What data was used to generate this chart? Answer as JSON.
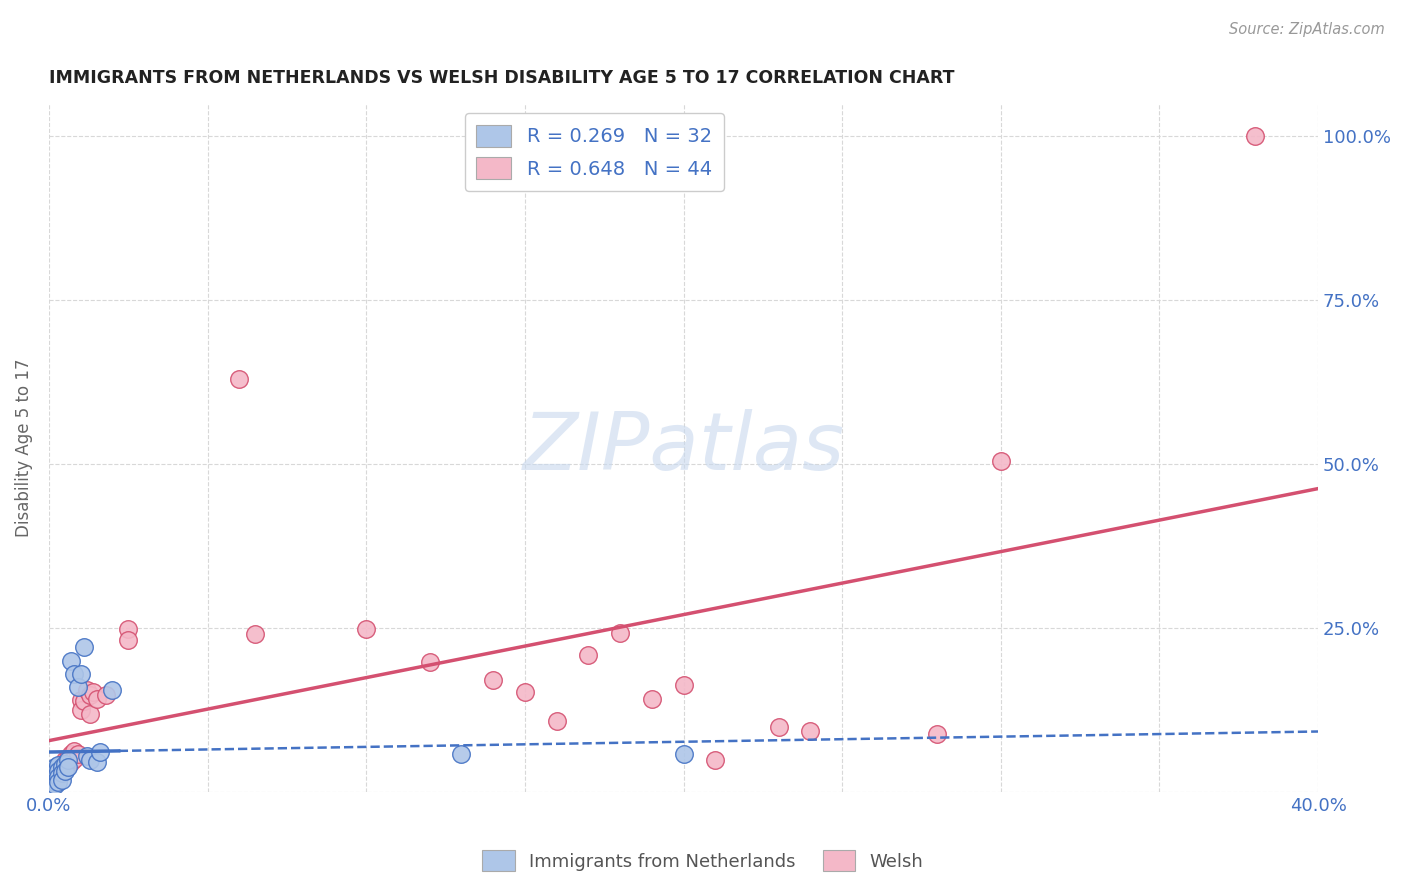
{
  "title": "IMMIGRANTS FROM NETHERLANDS VS WELSH DISABILITY AGE 5 TO 17 CORRELATION CHART",
  "source": "Source: ZipAtlas.com",
  "ylabel": "Disability Age 5 to 17",
  "xlim": [
    0.0,
    0.4
  ],
  "ylim": [
    0.0,
    1.05
  ],
  "xtick_positions": [
    0.0,
    0.05,
    0.1,
    0.15,
    0.2,
    0.25,
    0.3,
    0.35,
    0.4
  ],
  "xticklabels": [
    "0.0%",
    "",
    "",
    "",
    "",
    "",
    "",
    "",
    "40.0%"
  ],
  "ytick_positions": [
    0.0,
    0.25,
    0.5,
    0.75,
    1.0
  ],
  "yticklabels_right": [
    "",
    "25.0%",
    "50.0%",
    "75.0%",
    "100.0%"
  ],
  "netherlands_color": "#aec6e8",
  "netherlands_line_color": "#4472c4",
  "welsh_color": "#f4b8c8",
  "welsh_line_color": "#d45070",
  "netherlands_R": 0.269,
  "netherlands_N": 32,
  "welsh_R": 0.648,
  "welsh_N": 44,
  "legend_label_netherlands": "Immigrants from Netherlands",
  "legend_label_welsh": "Welsh",
  "watermark": "ZIPatlas",
  "netherlands_points": [
    [
      0.001,
      0.03
    ],
    [
      0.001,
      0.025
    ],
    [
      0.001,
      0.02
    ],
    [
      0.001,
      0.015
    ],
    [
      0.002,
      0.038
    ],
    [
      0.002,
      0.03
    ],
    [
      0.002,
      0.022
    ],
    [
      0.002,
      0.015
    ],
    [
      0.002,
      0.01
    ],
    [
      0.003,
      0.04
    ],
    [
      0.003,
      0.032
    ],
    [
      0.003,
      0.022
    ],
    [
      0.003,
      0.015
    ],
    [
      0.004,
      0.038
    ],
    [
      0.004,
      0.028
    ],
    [
      0.004,
      0.018
    ],
    [
      0.005,
      0.042
    ],
    [
      0.005,
      0.032
    ],
    [
      0.006,
      0.048
    ],
    [
      0.006,
      0.038
    ],
    [
      0.007,
      0.2
    ],
    [
      0.008,
      0.18
    ],
    [
      0.009,
      0.16
    ],
    [
      0.01,
      0.18
    ],
    [
      0.011,
      0.22
    ],
    [
      0.012,
      0.055
    ],
    [
      0.013,
      0.048
    ],
    [
      0.015,
      0.045
    ],
    [
      0.016,
      0.06
    ],
    [
      0.02,
      0.155
    ],
    [
      0.13,
      0.058
    ],
    [
      0.2,
      0.058
    ]
  ],
  "welsh_points": [
    [
      0.001,
      0.028
    ],
    [
      0.002,
      0.022
    ],
    [
      0.002,
      0.018
    ],
    [
      0.003,
      0.032
    ],
    [
      0.003,
      0.025
    ],
    [
      0.004,
      0.038
    ],
    [
      0.004,
      0.028
    ],
    [
      0.005,
      0.048
    ],
    [
      0.005,
      0.035
    ],
    [
      0.006,
      0.052
    ],
    [
      0.006,
      0.04
    ],
    [
      0.007,
      0.058
    ],
    [
      0.007,
      0.045
    ],
    [
      0.008,
      0.062
    ],
    [
      0.008,
      0.05
    ],
    [
      0.009,
      0.058
    ],
    [
      0.01,
      0.14
    ],
    [
      0.01,
      0.125
    ],
    [
      0.011,
      0.138
    ],
    [
      0.012,
      0.155
    ],
    [
      0.013,
      0.148
    ],
    [
      0.013,
      0.118
    ],
    [
      0.014,
      0.152
    ],
    [
      0.015,
      0.142
    ],
    [
      0.018,
      0.148
    ],
    [
      0.025,
      0.248
    ],
    [
      0.025,
      0.232
    ],
    [
      0.06,
      0.63
    ],
    [
      0.065,
      0.24
    ],
    [
      0.1,
      0.248
    ],
    [
      0.12,
      0.198
    ],
    [
      0.14,
      0.17
    ],
    [
      0.15,
      0.152
    ],
    [
      0.16,
      0.108
    ],
    [
      0.17,
      0.208
    ],
    [
      0.18,
      0.242
    ],
    [
      0.19,
      0.142
    ],
    [
      0.2,
      0.162
    ],
    [
      0.21,
      0.048
    ],
    [
      0.23,
      0.098
    ],
    [
      0.24,
      0.092
    ],
    [
      0.28,
      0.088
    ],
    [
      0.3,
      0.505
    ],
    [
      0.38,
      1.0
    ]
  ],
  "background_color": "#ffffff",
  "grid_color": "#d8d8d8"
}
